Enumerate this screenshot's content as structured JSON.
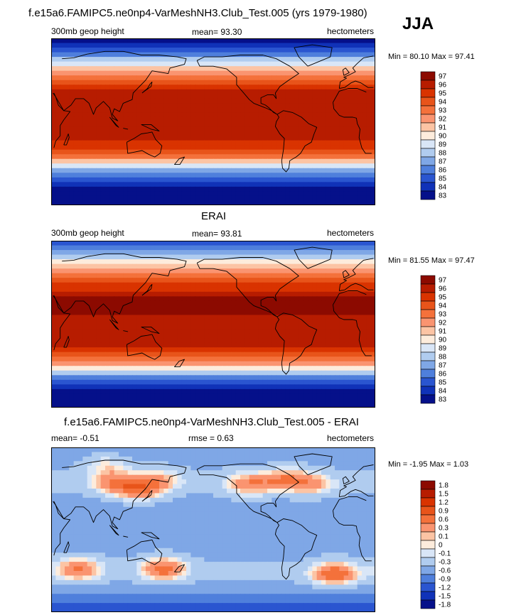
{
  "header": {
    "title": "f.e15a6.FAMIPC5.ne0np4-VarMeshNH3.Club_Test.005 (yrs 1979-1980)",
    "season": "JJA"
  },
  "chart_data": [
    {
      "type": "heatmap",
      "title": "",
      "left_label": "300mb geop height",
      "center_label": "mean=  93.30",
      "right_label": "hectometers",
      "minmax": "Min =  80.10 Max =  97.41",
      "levels": [
        "97",
        "96",
        "95",
        "94",
        "93",
        "92",
        "91",
        "90",
        "89",
        "88",
        "87",
        "86",
        "85",
        "84",
        "83"
      ],
      "colors": [
        "#8c0a00",
        "#b71c00",
        "#d93300",
        "#e8541a",
        "#f4713b",
        "#fa9470",
        "#fcc4a4",
        "#fdecdc",
        "#d9e6f7",
        "#b0ccef",
        "#7fa7e6",
        "#4f7fdc",
        "#2a55d0",
        "#1032b8",
        "#05108a"
      ],
      "profile": [
        [
          90,
          82
        ],
        [
          80,
          84
        ],
        [
          70,
          87
        ],
        [
          60,
          90
        ],
        [
          50,
          92.5
        ],
        [
          40,
          94.5
        ],
        [
          30,
          96
        ],
        [
          20,
          96.2
        ],
        [
          0,
          96
        ],
        [
          -20,
          95.5
        ],
        [
          -30,
          94.5
        ],
        [
          -40,
          92
        ],
        [
          -50,
          88
        ],
        [
          -60,
          85
        ],
        [
          -70,
          83
        ],
        [
          -90,
          81
        ]
      ],
      "anomalies": []
    },
    {
      "type": "heatmap",
      "title": "ERAI",
      "left_label": "300mb geop height",
      "center_label": "mean=  93.81",
      "right_label": "hectometers",
      "minmax": "Min =  81.55 Max =  97.47",
      "levels": [
        "97",
        "96",
        "95",
        "94",
        "93",
        "92",
        "91",
        "90",
        "89",
        "88",
        "87",
        "86",
        "85",
        "84",
        "83"
      ],
      "colors": [
        "#8c0a00",
        "#b71c00",
        "#d93300",
        "#e8541a",
        "#f4713b",
        "#fa9470",
        "#fcc4a4",
        "#fdecdc",
        "#d9e6f7",
        "#b0ccef",
        "#7fa7e6",
        "#4f7fdc",
        "#2a55d0",
        "#1032b8",
        "#05108a"
      ],
      "profile": [
        [
          90,
          84
        ],
        [
          80,
          86
        ],
        [
          70,
          89
        ],
        [
          60,
          91.5
        ],
        [
          50,
          93.5
        ],
        [
          40,
          95
        ],
        [
          30,
          96.5
        ],
        [
          20,
          96.8
        ],
        [
          0,
          96.3
        ],
        [
          -20,
          95.8
        ],
        [
          -30,
          95
        ],
        [
          -40,
          92.5
        ],
        [
          -50,
          88.5
        ],
        [
          -60,
          85
        ],
        [
          -70,
          83
        ],
        [
          -90,
          82
        ]
      ],
      "anomalies": []
    },
    {
      "type": "heatmap",
      "title": "f.e15a6.FAMIPC5.ne0np4-VarMeshNH3.Club_Test.005 - ERAI",
      "left_label": "mean=  -0.51",
      "center_label": "rmse =   0.63",
      "right_label": "hectometers",
      "minmax": "Min =  -1.95 Max =   1.03",
      "levels": [
        "1.8",
        "1.5",
        "1.2",
        "0.9",
        "0.6",
        "0.3",
        "0.1",
        "0",
        "-0.1",
        "-0.3",
        "-0.6",
        "-0.9",
        "-1.2",
        "-1.5",
        "-1.8"
      ],
      "colors": [
        "#8c0a00",
        "#b71c00",
        "#d93300",
        "#e8541a",
        "#f4713b",
        "#fa9470",
        "#fcc4a4",
        "#fdecdc",
        "#d9e6f7",
        "#b0ccef",
        "#7fa7e6",
        "#4f7fdc",
        "#2a55d0",
        "#1032b8",
        "#05108a"
      ],
      "profile": [
        [
          90,
          -0.7
        ],
        [
          70,
          -0.5
        ],
        [
          50,
          -0.35
        ],
        [
          30,
          -0.55
        ],
        [
          10,
          -0.65
        ],
        [
          -10,
          -0.6
        ],
        [
          -30,
          -0.5
        ],
        [
          -50,
          -0.35
        ],
        [
          -70,
          -0.7
        ],
        [
          -90,
          -1.4
        ]
      ],
      "anomalies": [
        {
          "lon": 100,
          "lat": 52,
          "amp": 0.75
        },
        {
          "lon": 128,
          "lat": 44,
          "amp": 0.9
        },
        {
          "lon": 150,
          "lat": 55,
          "amp": 0.55
        },
        {
          "lon": -110,
          "lat": 50,
          "amp": 0.8
        },
        {
          "lon": -70,
          "lat": 55,
          "amp": 0.75
        },
        {
          "lon": -40,
          "lat": 50,
          "amp": 0.6
        },
        {
          "lon": 90,
          "lat": 72,
          "amp": 0.45
        },
        {
          "lon": 60,
          "lat": -42,
          "amp": 0.9
        },
        {
          "lon": 155,
          "lat": -42,
          "amp": 1.0
        },
        {
          "lon": -15,
          "lat": -48,
          "amp": 1.1
        }
      ]
    }
  ]
}
